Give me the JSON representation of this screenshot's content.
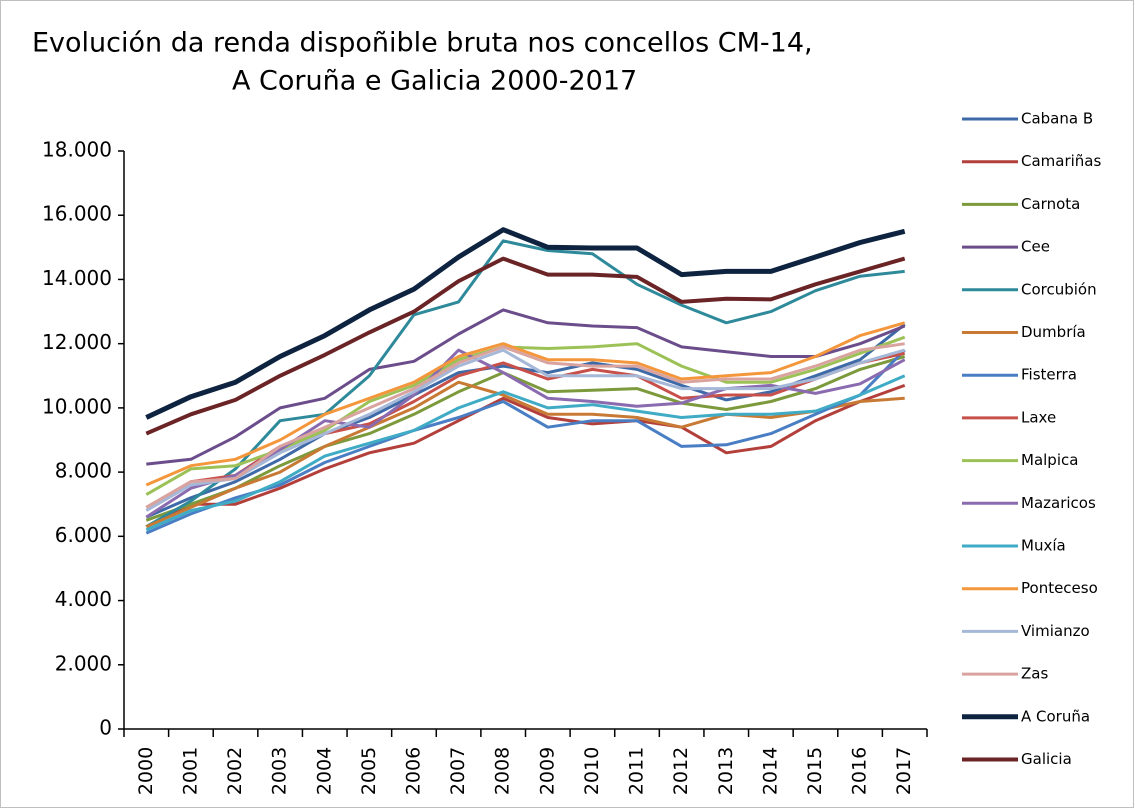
{
  "chart_data": {
    "type": "line",
    "title": [
      "Evolución da renda dispoñible bruta nos concellos CM-14,",
      "A Coruña e Galicia 2000-2017"
    ],
    "categories": [
      "2000",
      "2001",
      "2002",
      "2003",
      "2004",
      "2005",
      "2006",
      "2007",
      "2008",
      "2009",
      "2010",
      "2011",
      "2012",
      "2013",
      "2014",
      "2015",
      "2016",
      "2017"
    ],
    "ylim": [
      0,
      18000
    ],
    "yticks": [
      {
        "value": 0,
        "label": "0"
      },
      {
        "value": 2000,
        "label": "2.000"
      },
      {
        "value": 4000,
        "label": "4.000"
      },
      {
        "value": 6000,
        "label": "6.000"
      },
      {
        "value": 8000,
        "label": "8.000"
      },
      {
        "value": 10000,
        "label": "10.000"
      },
      {
        "value": 12000,
        "label": "12.000"
      },
      {
        "value": 14000,
        "label": "14.000"
      },
      {
        "value": 16000,
        "label": "16.000"
      },
      {
        "value": 18000,
        "label": "18.000"
      }
    ],
    "grid": false,
    "legend": "right",
    "series": [
      {
        "name": "Cabana B",
        "color": "#3e6aa8",
        "values": [
          6600,
          7200,
          7700,
          8400,
          9200,
          9700,
          10400,
          11100,
          11300,
          11100,
          11400,
          11200,
          10700,
          10250,
          10500,
          11000,
          11500,
          12600
        ]
      },
      {
        "name": "Camariñas",
        "color": "#b33f3b",
        "values": [
          6300,
          7000,
          7000,
          7500,
          8100,
          8600,
          8900,
          9600,
          10300,
          9700,
          9500,
          9600,
          9400,
          8600,
          8800,
          9600,
          10200,
          10700
        ]
      },
      {
        "name": "Carnota",
        "color": "#7c9a3c",
        "values": [
          6500,
          7000,
          7500,
          8200,
          8800,
          9200,
          9800,
          10500,
          11100,
          10500,
          10550,
          10600,
          10150,
          9950,
          10200,
          10600,
          11200,
          11600
        ]
      },
      {
        "name": "Cee",
        "color": "#6b4d8c",
        "values": [
          8250,
          8400,
          9100,
          10000,
          10300,
          11200,
          11450,
          12300,
          13050,
          12650,
          12550,
          12500,
          11900,
          11750,
          11600,
          11600,
          12000,
          12550
        ]
      },
      {
        "name": "Corcubión",
        "color": "#2e8a9a",
        "values": [
          6300,
          7100,
          8100,
          9600,
          9800,
          11000,
          12900,
          13300,
          15200,
          14900,
          14800,
          13850,
          13200,
          12650,
          13000,
          13650,
          14100,
          14250
        ]
      },
      {
        "name": "Dumbría",
        "color": "#c87a34",
        "values": [
          6300,
          6900,
          7500,
          8000,
          8800,
          9400,
          10000,
          10800,
          10400,
          9800,
          9800,
          9700,
          9400,
          9800,
          9700,
          9900,
          10200,
          10300
        ]
      },
      {
        "name": "Fisterra",
        "color": "#4a7ec4",
        "values": [
          6100,
          6700,
          7200,
          7600,
          8300,
          8800,
          9300,
          9700,
          10200,
          9400,
          9600,
          9600,
          8800,
          8850,
          9200,
          9800,
          10400,
          11800
        ]
      },
      {
        "name": "Laxe",
        "color": "#c8504a",
        "values": [
          6900,
          7700,
          7900,
          8800,
          9200,
          9500,
          10200,
          11000,
          11400,
          10900,
          11200,
          11000,
          10300,
          10400,
          10400,
          10900,
          11400,
          11700
        ]
      },
      {
        "name": "Malpica",
        "color": "#9cc257",
        "values": [
          7300,
          8100,
          8200,
          8700,
          9300,
          10200,
          10700,
          11500,
          11900,
          11850,
          11900,
          12000,
          11300,
          10800,
          10800,
          11200,
          11700,
          12200
        ]
      },
      {
        "name": "Mazaricos",
        "color": "#8a6bb0",
        "values": [
          6600,
          7500,
          7900,
          8700,
          9600,
          9400,
          10400,
          11800,
          11100,
          10300,
          10200,
          10050,
          10150,
          10600,
          10700,
          10450,
          10750,
          11500
        ]
      },
      {
        "name": "Muxía",
        "color": "#3fabc4",
        "values": [
          6200,
          6800,
          7100,
          7700,
          8500,
          8900,
          9300,
          10000,
          10500,
          10000,
          10100,
          9900,
          9700,
          9800,
          9800,
          9900,
          10400,
          11000
        ]
      },
      {
        "name": "Ponteceso",
        "color": "#f4963c",
        "values": [
          7600,
          8200,
          8400,
          9000,
          9800,
          10300,
          10800,
          11600,
          12000,
          11500,
          11500,
          11400,
          10900,
          11000,
          11100,
          11600,
          12250,
          12650
        ]
      },
      {
        "name": "Vimianzo",
        "color": "#a5b8d8",
        "values": [
          6800,
          7600,
          7800,
          8600,
          9200,
          9800,
          10500,
          11300,
          11800,
          11000,
          11000,
          11000,
          10600,
          10600,
          10600,
          10900,
          11400,
          11800
        ]
      },
      {
        "name": "Zas",
        "color": "#d9a3a0",
        "values": [
          6900,
          7700,
          7800,
          8800,
          9400,
          10000,
          10600,
          11400,
          11900,
          11400,
          11300,
          11300,
          10800,
          10900,
          10900,
          11300,
          11800,
          12000
        ]
      },
      {
        "name": "A Coruña",
        "color": "#0e2340",
        "values": [
          9700,
          10350,
          10800,
          11600,
          12250,
          13050,
          13700,
          14700,
          15550,
          15000,
          14980,
          14980,
          14150,
          14250,
          14250,
          14700,
          15150,
          15500
        ]
      },
      {
        "name": "Galicia",
        "color": "#6b2426",
        "values": [
          9200,
          9800,
          10250,
          11000,
          11650,
          12350,
          13000,
          13950,
          14650,
          14150,
          14150,
          14080,
          13300,
          13400,
          13380,
          13850,
          14250,
          14650
        ]
      }
    ]
  }
}
